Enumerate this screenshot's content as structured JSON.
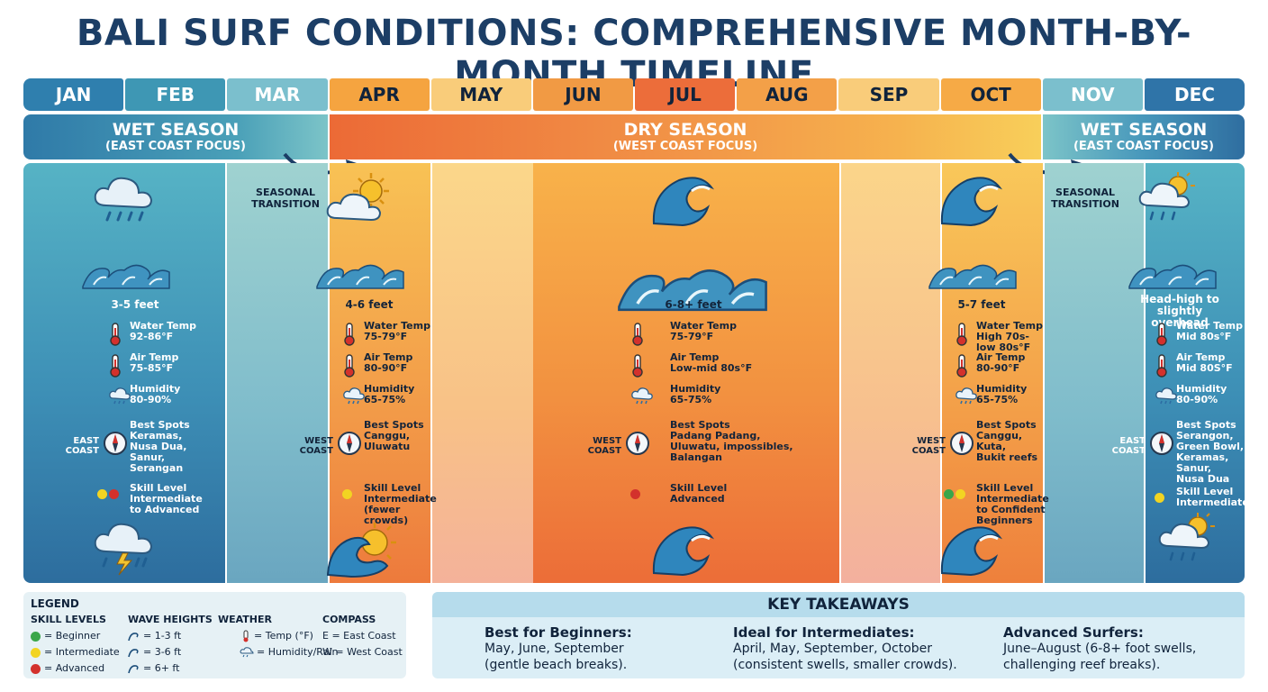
{
  "title": "BALI SURF CONDITIONS: COMPREHENSIVE MONTH-BY-MONTH TIMELINE",
  "months": [
    "JAN",
    "FEB",
    "MAR",
    "APR",
    "MAY",
    "JUN",
    "JUL",
    "AUG",
    "SEP",
    "OCT",
    "NOV",
    "DEC"
  ],
  "month_colors": [
    "#2f7fae",
    "#3e97b4",
    "#7bbfcd",
    "#f5a440",
    "#f9cc7a",
    "#f19a44",
    "#ec6d3a",
    "#f3a048",
    "#f9cc7a",
    "#f6aa46",
    "#7bbfcd",
    "#2f74a8"
  ],
  "seasons": {
    "wet_left": {
      "name": "WET SEASON",
      "sub": "(EAST COAST FOCUS)"
    },
    "dry": {
      "name": "DRY SEASON",
      "sub": "(WEST COAST FOCUS)"
    },
    "wet_right": {
      "name": "WET SEASON",
      "sub": "(EAST COAST FOCUS)"
    }
  },
  "transition_label": "SEASONAL\nTRANSITION",
  "columns": {
    "jan": {
      "wave": "3-5 feet",
      "water_label": "Water Temp",
      "water_val": "92-86°F",
      "air_label": "Air Temp",
      "air_val": "75-85°F",
      "hum_label": "Humidity",
      "hum_val": "80-90%",
      "spots_label": "Best Spots",
      "spots_val": "Keramas,\nNusa Dua,\nSanur,\nSerangan",
      "coast": "EAST\nCOAST",
      "skill_label": "Skill Level",
      "skill_val": "Intermediate\nto Advanced"
    },
    "apr": {
      "wave": "4-6 feet",
      "water_label": "Water Temp",
      "water_val": "75-79°F",
      "air_label": "Air Temp",
      "air_val": "80-90°F",
      "hum_label": "Humidity",
      "hum_val": "65-75%",
      "spots_label": "Best Spots",
      "spots_val": "Canggu,\nUluwatu",
      "coast": "WEST\nCOAST",
      "skill_label": "Skill Level",
      "skill_val": "Intermediate\n(fewer crowds)"
    },
    "jun": {
      "wave": "6-8+ feet",
      "water_label": "Water Temp",
      "water_val": "75-79°F",
      "air_label": "Air Temp",
      "air_val": "Low-mid 80s°F",
      "hum_label": "Humidity",
      "hum_val": "65-75%",
      "spots_label": "Best Spots",
      "spots_val": "Padang Padang,\nUluwatu, impossibles,\nBalangan",
      "coast": "WEST\nCOAST",
      "skill_label": "Skill Level",
      "skill_val": "Advanced"
    },
    "oct": {
      "wave": "5-7 feet",
      "water_label": "Water Temp",
      "water_val": "High 70s-\nlow 80s°F",
      "air_label": "Air Temp",
      "air_val": "80-90°F",
      "hum_label": "Humidity",
      "hum_val": "65-75%",
      "spots_label": "Best Spots",
      "spots_val": "Canggu,\nKuta,\nBukit reefs",
      "coast": "WEST\nCOAST",
      "skill_label": "Skill Level",
      "skill_val": "Intermediate\nto Confident\nBeginners"
    },
    "dec": {
      "wave": "Head-high to\nslightly overhead",
      "water_label": "Water Temp",
      "water_val": "Mid 80s°F",
      "air_label": "Air Temp",
      "air_val": "Mid 80S°F",
      "hum_label": "Humidity",
      "hum_val": "80-90%",
      "spots_label": "Best Spots",
      "spots_val": "Serangon,\nGreen Bowl,\nKeramas,\nSanur,\nNusa Dua",
      "coast": "EAST\nCOAST",
      "skill_label": "Skill Level",
      "skill_val": "Intermediate"
    }
  },
  "legend": {
    "title": "LEGEND",
    "skill_title": "SKILL LEVELS",
    "skill": [
      "= Beginner",
      "= Intermediate",
      "= Advanced"
    ],
    "skill_colors": [
      "#3aa64a",
      "#f2d422",
      "#d3312c"
    ],
    "wave_title": "WAVE HEIGHTS",
    "wave": [
      "= 1-3 ft",
      "= 3-6 ft",
      "= 6+ ft"
    ],
    "weather_title": "WEATHER",
    "weather": [
      "= Temp (°F)",
      "= Humidity/Rain"
    ],
    "compass_title": "COMPASS",
    "compass": [
      "E = East Coast",
      "W = West Coast"
    ]
  },
  "takeaways": {
    "title": "KEY TAKEAWAYS",
    "items": [
      {
        "head": "Best for Beginners:",
        "body": "May, June, September\n(gentle beach breaks)."
      },
      {
        "head": "Ideal for Intermediates:",
        "body": "April, May, September, October\n(consistent swells, smaller crowds)."
      },
      {
        "head": "Advanced Surfers:",
        "body": "June–August (6-8+ foot swells,\nchallenging reef breaks)."
      }
    ]
  }
}
